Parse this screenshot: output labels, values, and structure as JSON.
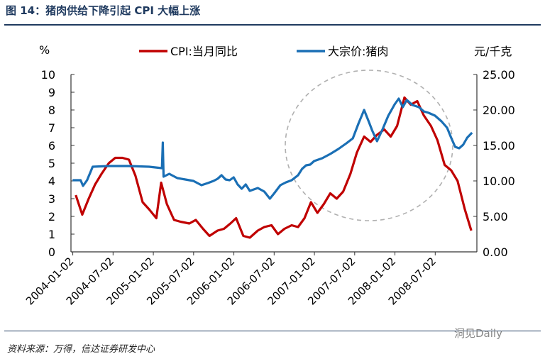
{
  "title": "图 14：猪肉供给下降引起 CPI 大幅上涨",
  "source": "资料来源：万得，信达证券研发中心",
  "watermark": "洞见Daily",
  "colors": {
    "cpi": "#c00000",
    "pork": "#1a6fb5",
    "circle": "#b0b0b0"
  },
  "chart_data": {
    "type": "line",
    "title": "图 14：猪肉供给下降引起 CPI 大幅上涨",
    "y_left_label": "%",
    "y_right_label": "元/千克",
    "y_left_range": [
      0,
      10
    ],
    "y_right_range": [
      0,
      25
    ],
    "y_left_ticks": [
      "0",
      "1",
      "2",
      "3",
      "4",
      "5",
      "6",
      "7",
      "8",
      "9",
      "10"
    ],
    "y_right_ticks": [
      "0.00",
      "5.00",
      "10.00",
      "15.00",
      "20.00",
      "25.00"
    ],
    "x_tick_labels": [
      "2004-01-02",
      "2004-07-02",
      "2005-01-02",
      "2005-07-02",
      "2006-01-02",
      "2006-07-02",
      "2007-01-02",
      "2007-07-02",
      "2008-01-02",
      "2008-07-02"
    ],
    "x_range": [
      2003.98,
      2009.02
    ],
    "legend": [
      "CPI:当月同比",
      "大宗价:猪肉"
    ],
    "annotation": "dashed circle around 2007-2008 peak",
    "series": [
      {
        "name": "CPI:当月同比",
        "axis": "left",
        "points": [
          [
            2004.04,
            3.2
          ],
          [
            2004.12,
            2.1
          ],
          [
            2004.2,
            3.0
          ],
          [
            2004.28,
            3.8
          ],
          [
            2004.36,
            4.4
          ],
          [
            2004.45,
            5.0
          ],
          [
            2004.53,
            5.3
          ],
          [
            2004.62,
            5.3
          ],
          [
            2004.7,
            5.2
          ],
          [
            2004.78,
            4.3
          ],
          [
            2004.87,
            2.8
          ],
          [
            2004.95,
            2.4
          ],
          [
            2005.04,
            1.9
          ],
          [
            2005.1,
            3.9
          ],
          [
            2005.17,
            2.7
          ],
          [
            2005.26,
            1.8
          ],
          [
            2005.34,
            1.7
          ],
          [
            2005.45,
            1.6
          ],
          [
            2005.53,
            1.8
          ],
          [
            2005.62,
            1.3
          ],
          [
            2005.7,
            0.9
          ],
          [
            2005.8,
            1.2
          ],
          [
            2005.88,
            1.3
          ],
          [
            2005.96,
            1.6
          ],
          [
            2006.03,
            1.9
          ],
          [
            2006.12,
            0.9
          ],
          [
            2006.2,
            0.8
          ],
          [
            2006.3,
            1.2
          ],
          [
            2006.38,
            1.4
          ],
          [
            2006.47,
            1.5
          ],
          [
            2006.55,
            1.0
          ],
          [
            2006.63,
            1.3
          ],
          [
            2006.72,
            1.5
          ],
          [
            2006.8,
            1.4
          ],
          [
            2006.88,
            1.9
          ],
          [
            2006.96,
            2.8
          ],
          [
            2007.04,
            2.2
          ],
          [
            2007.12,
            2.7
          ],
          [
            2007.2,
            3.3
          ],
          [
            2007.28,
            3.0
          ],
          [
            2007.36,
            3.4
          ],
          [
            2007.45,
            4.4
          ],
          [
            2007.53,
            5.6
          ],
          [
            2007.62,
            6.5
          ],
          [
            2007.7,
            6.2
          ],
          [
            2007.78,
            6.6
          ],
          [
            2007.87,
            6.9
          ],
          [
            2007.95,
            6.5
          ],
          [
            2008.03,
            7.1
          ],
          [
            2008.12,
            8.7
          ],
          [
            2008.2,
            8.3
          ],
          [
            2008.28,
            8.5
          ],
          [
            2008.36,
            7.7
          ],
          [
            2008.45,
            7.1
          ],
          [
            2008.53,
            6.3
          ],
          [
            2008.62,
            4.9
          ],
          [
            2008.7,
            4.6
          ],
          [
            2008.78,
            4.0
          ],
          [
            2008.87,
            2.4
          ],
          [
            2008.95,
            1.2
          ]
        ]
      },
      {
        "name": "大宗价:猪肉",
        "axis": "right",
        "points": [
          [
            2004.0,
            10.1
          ],
          [
            2004.1,
            10.1
          ],
          [
            2004.13,
            9.3
          ],
          [
            2004.18,
            10.1
          ],
          [
            2004.25,
            12.0
          ],
          [
            2004.45,
            12.1
          ],
          [
            2004.7,
            12.1
          ],
          [
            2004.95,
            12.0
          ],
          [
            2005.11,
            11.8
          ],
          [
            2005.12,
            15.4
          ],
          [
            2005.13,
            10.6
          ],
          [
            2005.2,
            11.0
          ],
          [
            2005.3,
            10.4
          ],
          [
            2005.4,
            10.2
          ],
          [
            2005.5,
            10.0
          ],
          [
            2005.6,
            9.4
          ],
          [
            2005.68,
            9.7
          ],
          [
            2005.75,
            10.0
          ],
          [
            2005.8,
            10.3
          ],
          [
            2005.85,
            10.8
          ],
          [
            2005.9,
            10.2
          ],
          [
            2005.95,
            10.1
          ],
          [
            2006.0,
            10.5
          ],
          [
            2006.05,
            9.5
          ],
          [
            2006.1,
            8.9
          ],
          [
            2006.15,
            9.5
          ],
          [
            2006.2,
            8.6
          ],
          [
            2006.3,
            9.0
          ],
          [
            2006.38,
            8.5
          ],
          [
            2006.45,
            7.5
          ],
          [
            2006.5,
            8.2
          ],
          [
            2006.58,
            9.4
          ],
          [
            2006.65,
            9.8
          ],
          [
            2006.72,
            10.1
          ],
          [
            2006.8,
            10.8
          ],
          [
            2006.85,
            11.7
          ],
          [
            2006.9,
            12.2
          ],
          [
            2006.95,
            12.3
          ],
          [
            2007.0,
            12.8
          ],
          [
            2007.1,
            13.2
          ],
          [
            2007.2,
            13.8
          ],
          [
            2007.3,
            14.5
          ],
          [
            2007.4,
            15.3
          ],
          [
            2007.48,
            16.0
          ],
          [
            2007.55,
            18.1
          ],
          [
            2007.62,
            20.0
          ],
          [
            2007.68,
            18.3
          ],
          [
            2007.72,
            17.1
          ],
          [
            2007.78,
            15.6
          ],
          [
            2007.85,
            17.3
          ],
          [
            2007.92,
            19.2
          ],
          [
            2008.0,
            20.8
          ],
          [
            2008.05,
            21.6
          ],
          [
            2008.1,
            20.4
          ],
          [
            2008.15,
            21.4
          ],
          [
            2008.22,
            20.7
          ],
          [
            2008.3,
            20.4
          ],
          [
            2008.36,
            19.8
          ],
          [
            2008.42,
            19.6
          ],
          [
            2008.5,
            19.2
          ],
          [
            2008.58,
            18.4
          ],
          [
            2008.65,
            17.5
          ],
          [
            2008.7,
            16.1
          ],
          [
            2008.75,
            14.8
          ],
          [
            2008.8,
            14.6
          ],
          [
            2008.85,
            15.1
          ],
          [
            2008.9,
            16.1
          ],
          [
            2008.96,
            16.8
          ]
        ]
      }
    ]
  }
}
